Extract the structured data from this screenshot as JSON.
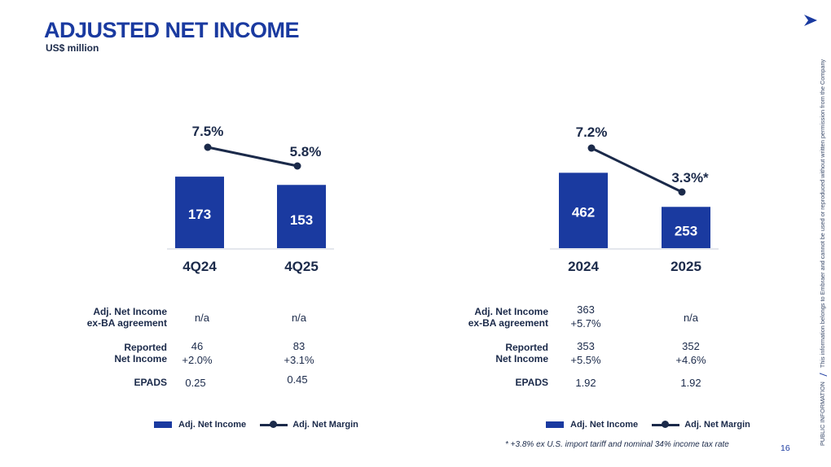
{
  "header": {
    "title": "ADJUSTED NET INCOME",
    "subtitle": "US$ million"
  },
  "side_notice": {
    "classification": "PUBLIC INFORMATION",
    "text": "This information belongs to Embraer and cannot be used or reproduced without written permission from the Company"
  },
  "colors": {
    "bar": "#1a3aa0",
    "line": "#1b2a4a",
    "title": "#1a3aa0"
  },
  "chart_data": [
    {
      "type": "bar",
      "categories": [
        "4Q24",
        "4Q25"
      ],
      "series": [
        {
          "name": "Adj. Net Income",
          "values": [
            173,
            153
          ],
          "labels": [
            "173",
            "153"
          ]
        },
        {
          "name": "Adj. Net Margin",
          "type": "line",
          "values": [
            7.5,
            5.8
          ],
          "labels": [
            "7.5%",
            "5.8%"
          ]
        }
      ],
      "legend_position": "bottom"
    },
    {
      "type": "bar",
      "categories": [
        "2024",
        "2025"
      ],
      "series": [
        {
          "name": "Adj. Net Income",
          "values": [
            462,
            253
          ],
          "labels": [
            "462",
            "253"
          ]
        },
        {
          "name": "Adj. Net Margin",
          "type": "line",
          "values": [
            7.2,
            3.3
          ],
          "labels": [
            "7.2%",
            "3.3%*"
          ]
        }
      ],
      "legend_position": "bottom"
    }
  ],
  "tables": [
    {
      "rows": [
        {
          "label_1": "Adj. Net Income",
          "label_2": "ex-BA agreement",
          "values": [
            [
              "n/a"
            ],
            [
              "n/a"
            ]
          ]
        },
        {
          "label_1": "Reported",
          "label_2": "Net Income",
          "values": [
            [
              "46",
              "+2.0%"
            ],
            [
              "83",
              "+3.1%"
            ]
          ]
        },
        {
          "label_1": "EPADS",
          "label_2": "",
          "values": [
            [
              "0.25"
            ],
            [
              "0.45"
            ]
          ]
        }
      ]
    },
    {
      "rows": [
        {
          "label_1": "Adj. Net Income",
          "label_2": "ex-BA agreement",
          "values": [
            [
              "363",
              "+5.7%"
            ],
            [
              "n/a"
            ]
          ]
        },
        {
          "label_1": "Reported",
          "label_2": "Net Income",
          "values": [
            [
              "353",
              "+5.5%"
            ],
            [
              "352",
              "+4.6%"
            ]
          ]
        },
        {
          "label_1": "EPADS",
          "label_2": "",
          "values": [
            [
              "1.92"
            ],
            [
              "1.92"
            ]
          ]
        }
      ]
    }
  ],
  "legend": {
    "bar_label": "Adj. Net Income",
    "line_label": "Adj. Net Margin"
  },
  "footnote": "* +3.8% ex U.S. import tariff and nominal 34% income tax rate",
  "page_number": "16"
}
